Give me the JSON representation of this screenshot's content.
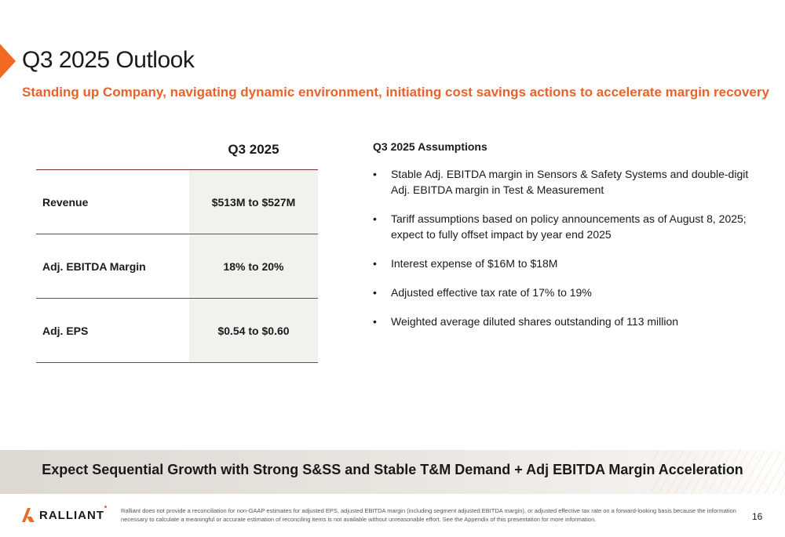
{
  "header": {
    "title": "Q3 2025 Outlook",
    "subtitle": "Standing up Company, navigating dynamic environment, initiating cost savings actions to accelerate margin recovery",
    "accent_color": "#f26a21"
  },
  "guidance_table": {
    "column_header": "Q3 2025",
    "rows": [
      {
        "label": "Revenue",
        "value": "$513M to $527M"
      },
      {
        "label": "Adj. EBITDA Margin",
        "value": "18% to 20%"
      },
      {
        "label": "Adj. EPS",
        "value": "$0.54 to $0.60"
      }
    ]
  },
  "assumptions": {
    "title": "Q3 2025 Assumptions",
    "bullet": "•",
    "items": [
      "Stable Adj. EBITDA margin in Sensors & Safety Systems and double-digit Adj. EBITDA margin in Test & Measurement",
      "Tariff assumptions based on policy announcements as of August 8, 2025; expect to fully offset impact by year end 2025",
      "Interest expense of $16M to $18M",
      "Adjusted effective tax rate of 17% to 19%",
      "Weighted average diluted shares outstanding of 113 million"
    ]
  },
  "banner": {
    "text": "Expect Sequential Growth with Strong S&SS and Stable T&M Demand + Adj EBITDA Margin Acceleration"
  },
  "footer": {
    "logo_text": "RALLIANT",
    "disclaimer": "Ralliant does not provide a reconciliation for non-GAAP estimates for adjusted EPS, adjusted EBITDA margin (including segment adjusted EBITDA margin), or adjusted effective tax rate on a forward-looking basis because the information necessary to calculate a meaningful or accurate estimation of reconciling items is not available without unreasonable effort. See the Appendix of this presentation for more information.",
    "page_number": "16"
  }
}
